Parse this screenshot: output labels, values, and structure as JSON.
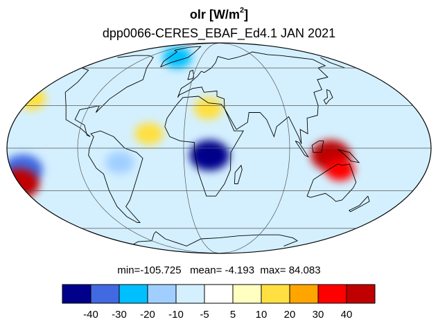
{
  "title": {
    "variable": "olr",
    "units_prefix": "[W/m",
    "units_exp": "2",
    "units_suffix": "]"
  },
  "subtitle": "dpp0066-CERES_EBAF_Ed4.1  JAN 2021",
  "stats": {
    "min_label": "min=",
    "min": "-105.725",
    "mean_label": "mean=",
    "mean": "-4.193",
    "max_label": "max=",
    "max": "84.083"
  },
  "colorbar": {
    "colors": [
      "#00008b",
      "#4169e1",
      "#00bfff",
      "#a0cfff",
      "#d4f0ff",
      "#ffffff",
      "#ffffc0",
      "#ffe040",
      "#ffa500",
      "#ff0000",
      "#c00000"
    ],
    "labels": [
      "-40",
      "-30",
      "-20",
      "-10",
      "-5",
      "5",
      "10",
      "20",
      "30",
      "40"
    ]
  },
  "map": {
    "projection": "mollweide",
    "lon_center": 30,
    "meridians_deg": [
      -90,
      0,
      90
    ],
    "parallels_deg": [
      -60,
      -30,
      0,
      30,
      60
    ],
    "land_color": "#000000",
    "grid_color": "#555555",
    "anomaly_blobs": [
      {
        "region": "equatorial-africa",
        "lon": 22,
        "lat": -5,
        "value": -45
      },
      {
        "region": "maritime-continent",
        "lon": 125,
        "lat": -5,
        "value": 40
      },
      {
        "region": "northern-australia",
        "lon": 135,
        "lat": -15,
        "value": 30
      },
      {
        "region": "east-pacific-south",
        "lon": -140,
        "lat": -15,
        "value": -35
      },
      {
        "region": "far-east-pacific",
        "lon": -150,
        "lat": -25,
        "value": 40
      },
      {
        "region": "amazon",
        "lon": -55,
        "lat": -10,
        "value": -20
      },
      {
        "region": "greenland-arctic",
        "lon": -40,
        "lat": 70,
        "value": -30
      },
      {
        "region": "north-africa",
        "lon": 20,
        "lat": 28,
        "value": 15
      },
      {
        "region": "atlantic-itcz",
        "lon": -30,
        "lat": 10,
        "value": 15
      },
      {
        "region": "north-pacific",
        "lon": -150,
        "lat": 35,
        "value": 15
      }
    ]
  }
}
